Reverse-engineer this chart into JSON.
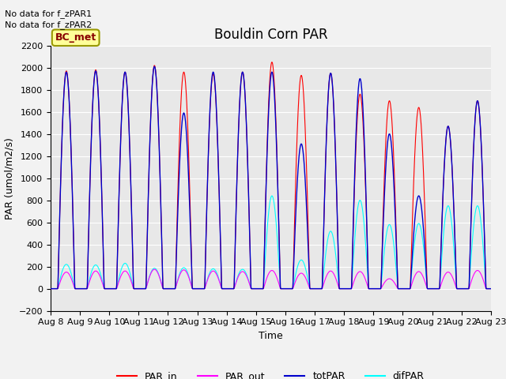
{
  "title": "Bouldin Corn PAR",
  "ylabel": "PAR (umol/m2/s)",
  "xlabel": "Time",
  "ylim": [
    -200,
    2200
  ],
  "xtick_labels": [
    "Aug 8",
    "Aug 9",
    "Aug 10",
    "Aug 11",
    "Aug 12",
    "Aug 13",
    "Aug 14",
    "Aug 15",
    "Aug 16",
    "Aug 17",
    "Aug 18",
    "Aug 19",
    "Aug 20",
    "Aug 21",
    "Aug 22",
    "Aug 23"
  ],
  "ytick_values": [
    -200,
    0,
    200,
    400,
    600,
    800,
    1000,
    1200,
    1400,
    1600,
    1800,
    2000,
    2200
  ],
  "note_line1": "No data for f_zPAR1",
  "note_line2": "No data for f_zPAR2",
  "legend_label": "BC_met",
  "legend_bg": "#FFFF99",
  "legend_border": "#999900",
  "plot_bg_color": "#E8E8E8",
  "fig_bg_color": "#F2F2F2",
  "colors": {
    "PAR_in": "#FF0000",
    "PAR_out": "#FF00FF",
    "totPAR": "#0000CC",
    "difPAR": "#00FFFF"
  },
  "n_days": 15,
  "peak_par_in": [
    1970,
    1980,
    1960,
    2020,
    1960,
    1940,
    1960,
    2050,
    1930,
    1950,
    1760,
    1700,
    1640,
    1470,
    1700
  ],
  "peak_totpar": [
    1960,
    1970,
    1960,
    2010,
    1590,
    1960,
    1960,
    1960,
    1310,
    1950,
    1900,
    1400,
    840,
    1470,
    1700
  ],
  "peak_parout": [
    150,
    160,
    160,
    175,
    170,
    160,
    155,
    165,
    140,
    160,
    155,
    90,
    155,
    150,
    165
  ],
  "peak_difpar": [
    220,
    215,
    230,
    185,
    190,
    180,
    175,
    840,
    260,
    520,
    800,
    580,
    590,
    750,
    750
  ],
  "title_fontsize": 12,
  "axis_fontsize": 9,
  "tick_fontsize": 8,
  "note_fontsize": 8,
  "legend_fontsize": 9
}
